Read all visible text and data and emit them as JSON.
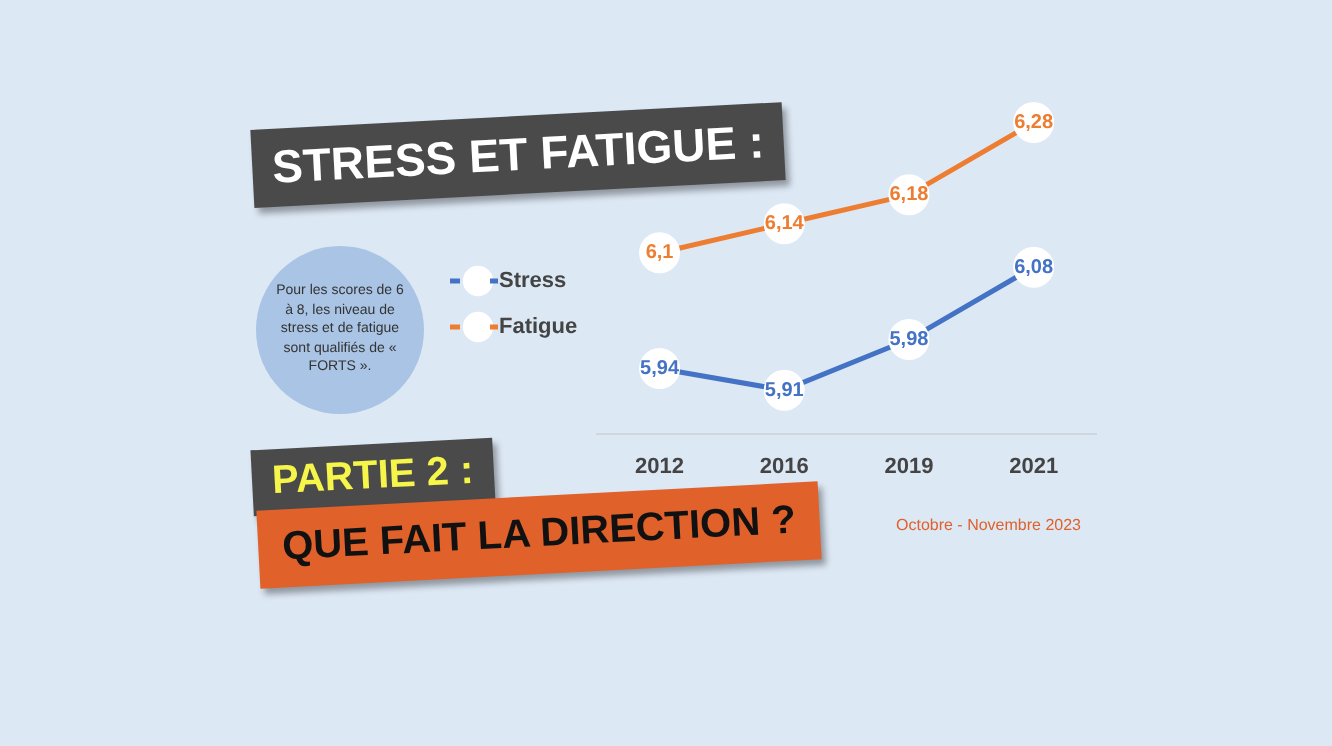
{
  "chart_data": {
    "type": "line",
    "title": "STRESS ET FATIGUE :",
    "annotations": [
      "Pour les scores de 6 à 8, les niveau de stress et de fatigue sont qualifiés de « FORTS ».",
      "PARTIE 2 :",
      "QUE FAIT LA DIRECTION ?",
      "Octobre - Novembre 2023"
    ],
    "categories": [
      "2012",
      "2016",
      "2019",
      "2021"
    ],
    "series": [
      {
        "name": "Stress",
        "color": "#4472c4",
        "values": [
          5.94,
          5.91,
          5.98,
          6.08
        ],
        "value_labels": [
          "5,94",
          "5,91",
          "5,98",
          "6,08"
        ]
      },
      {
        "name": "Fatigue",
        "color": "#ed7d31",
        "values": [
          6.1,
          6.14,
          6.18,
          6.28
        ],
        "value_labels": [
          "6,1",
          "6,14",
          "6,18",
          "6,28"
        ]
      }
    ],
    "legend": "left",
    "marker": "circle",
    "grid": false
  }
}
